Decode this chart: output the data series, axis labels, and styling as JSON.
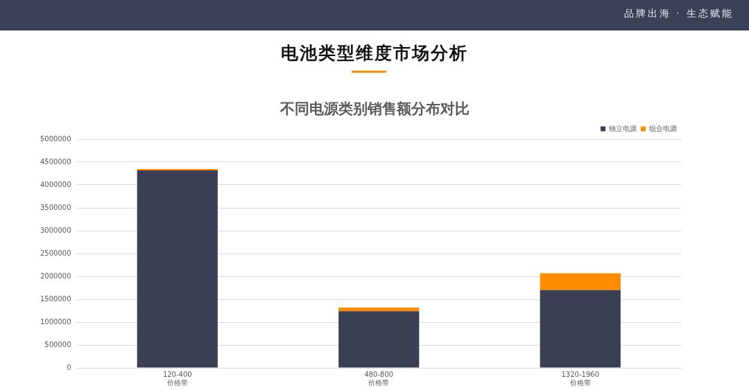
{
  "chart_data": {
    "type": "bar",
    "title": "电池类型维度市场分析",
    "subtitle": "不同电源类别销售额分布对比",
    "annotations": [
      "品牌出海 · 生态赋能"
    ],
    "categories": [
      "120-400\n价格带",
      "480-800\n价格带",
      "1320-1960\n价格带"
    ],
    "series": [
      {
        "name": "独立电源",
        "color": "#3b3f54",
        "values": [
          4320000,
          1240000,
          1700000
        ]
      },
      {
        "name": "组合电源",
        "color": "#ff8c00",
        "values": [
          30000,
          80000,
          370000
        ]
      }
    ],
    "stacked": true,
    "ylim": [
      0,
      5000000
    ],
    "yticks": [
      0,
      500000,
      1000000,
      1500000,
      2000000,
      2500000,
      3000000,
      3500000,
      4000000,
      4500000,
      5000000
    ],
    "grid": "y",
    "legend": "top right"
  }
}
